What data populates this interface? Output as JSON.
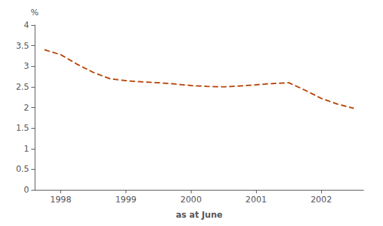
{
  "chart_data": {
    "type": "line",
    "x": [
      1997.75,
      1998.0,
      1998.25,
      1998.5,
      1998.75,
      1999.0,
      1999.25,
      1999.5,
      1999.75,
      2000.0,
      2000.25,
      2000.5,
      2000.75,
      2001.0,
      2001.25,
      2001.5,
      2001.75,
      2002.0,
      2002.25,
      2002.5
    ],
    "values": [
      3.4,
      3.28,
      3.05,
      2.85,
      2.7,
      2.65,
      2.62,
      2.6,
      2.57,
      2.53,
      2.51,
      2.5,
      2.52,
      2.55,
      2.58,
      2.6,
      2.42,
      2.22,
      2.08,
      1.98
    ],
    "color": "#b8460b",
    "line_style": "dashed",
    "xlabel": "as at June",
    "ylabel": "%",
    "xlim": [
      1997.6,
      2002.65
    ],
    "ylim": [
      0,
      4
    ],
    "xticks": [
      1998,
      1999,
      2000,
      2001,
      2002
    ],
    "yticks": [
      0,
      0.5,
      1,
      1.5,
      2,
      2.5,
      3,
      3.5,
      4
    ],
    "grid": false
  }
}
